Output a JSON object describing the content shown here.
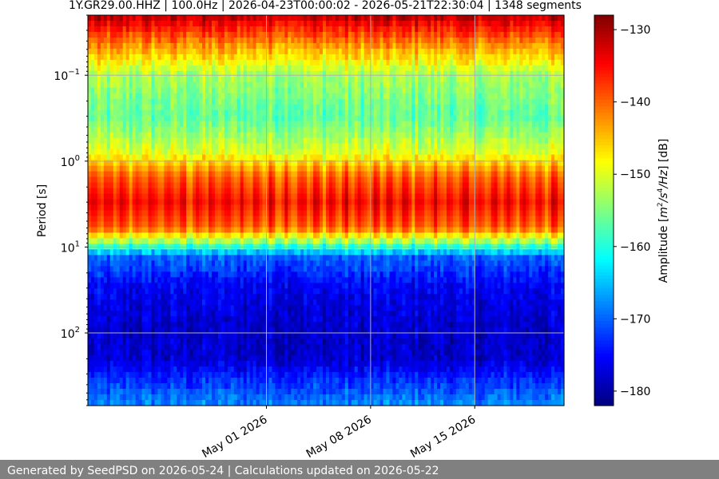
{
  "chart_data": {
    "type": "heatmap",
    "title": "1Y.GR29.00.HHZ | 100.0Hz | 2026-04-23T00:00:02 - 2026-05-21T22:30:04 | 1348 segments",
    "xlabel": "",
    "ylabel": "Period [s]",
    "x_axis": {
      "type": "date",
      "range": [
        "2026-04-19",
        "2026-05-21"
      ],
      "ticks": [
        {
          "date": "2026-05-01",
          "label": "May 01 2026"
        },
        {
          "date": "2026-05-08",
          "label": "May 08 2026"
        },
        {
          "date": "2026-05-15",
          "label": "May 15 2026"
        }
      ]
    },
    "y_axis": {
      "scale": "log",
      "inverted": true,
      "range": [
        0.02,
        700
      ],
      "ticks": [
        {
          "value": 0.1,
          "base": "10",
          "exp": "−1"
        },
        {
          "value": 1,
          "base": "10",
          "exp": "0"
        },
        {
          "value": 10,
          "base": "10",
          "exp": "1"
        },
        {
          "value": 100,
          "base": "10",
          "exp": "2"
        }
      ]
    },
    "grid": true,
    "colorbar": {
      "label_prefix": "Amplitude [",
      "label_unit_m": "m",
      "label_unit_sup1": "2",
      "label_unit_mid": "/s",
      "label_unit_sup2": "4",
      "label_unit_end": "/Hz",
      "label_suffix": "] [dB]",
      "range": [
        -182,
        -128
      ],
      "ticks": [
        "−130",
        "−140",
        "−150",
        "−160",
        "−170",
        "−180"
      ],
      "tick_values": [
        -130,
        -140,
        -150,
        -160,
        -170,
        -180
      ],
      "colormap": "jet"
    },
    "period_profile_db": [
      {
        "period": 0.02,
        "db": -131
      },
      {
        "period": 0.03,
        "db": -137
      },
      {
        "period": 0.05,
        "db": -144
      },
      {
        "period": 0.1,
        "db": -153
      },
      {
        "period": 0.3,
        "db": -157
      },
      {
        "period": 0.8,
        "db": -150
      },
      {
        "period": 1.5,
        "db": -140
      },
      {
        "period": 3,
        "db": -135
      },
      {
        "period": 6,
        "db": -140
      },
      {
        "period": 9,
        "db": -155
      },
      {
        "period": 13,
        "db": -170
      },
      {
        "period": 30,
        "db": -176
      },
      {
        "period": 80,
        "db": -178
      },
      {
        "period": 200,
        "db": -178
      },
      {
        "period": 350,
        "db": -173
      },
      {
        "period": 700,
        "db": -168
      }
    ]
  },
  "footer": {
    "text": "Generated by SeedPSD on 2026-05-24 | Calculations updated on 2026-05-22"
  }
}
